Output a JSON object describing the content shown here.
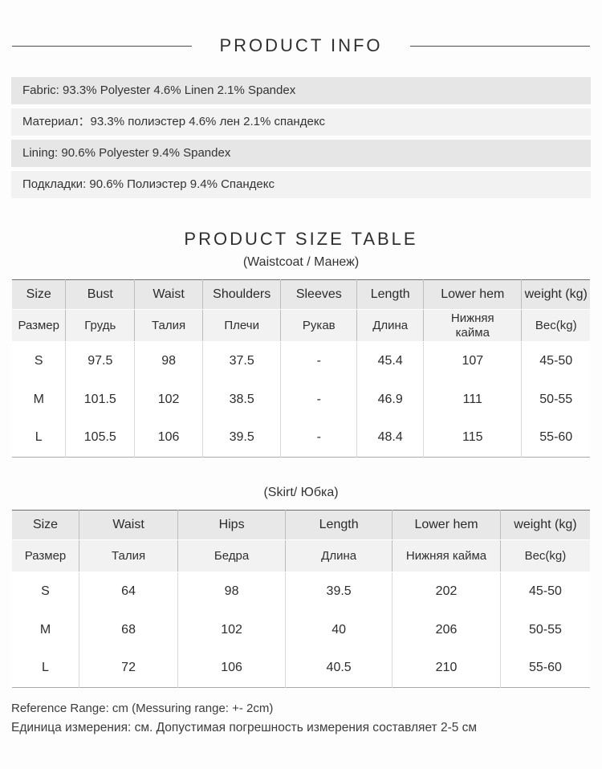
{
  "header": {
    "title": "PRODUCT INFO"
  },
  "fabric_info": [
    "Fabric: 93.3% Polyester 4.6% Linen 2.1% Spandex",
    "Материал：93.3% полиэстер 4.6% лен 2.1% спандекс",
    "Lining: 90.6% Polyester 9.4% Spandex",
    "Подкладки:  90.6% Полиэстер 9.4% Спандекс"
  ],
  "size_table": {
    "title": "PRODUCT SIZE TABLE",
    "waistcoat": {
      "subtitle": "(Waistcoat / Манеж)",
      "headers_en": [
        "Size",
        "Bust",
        "Waist",
        "Shoulders",
        "Sleeves",
        "Length",
        "Lower hem",
        "weight (kg)"
      ],
      "headers_ru": [
        "Размер",
        "Грудь",
        "Талия",
        "Плечи",
        "Рукав",
        "Длина",
        "Нижняя\nкайма",
        "Вес(kg)"
      ],
      "col_widths_pct": [
        9.3,
        11.9,
        11.8,
        13.5,
        13.2,
        11.5,
        17.0,
        11.8
      ],
      "rows": [
        [
          "S",
          "97.5",
          "98",
          "37.5",
          "-",
          "45.4",
          "107",
          "45-50"
        ],
        [
          "M",
          "101.5",
          "102",
          "38.5",
          "-",
          "46.9",
          "111",
          "50-55"
        ],
        [
          "L",
          "105.5",
          "106",
          "39.5",
          "-",
          "48.4",
          "115",
          "55-60"
        ]
      ]
    },
    "skirt": {
      "subtitle": "(Skirt/ Юбка)",
      "headers_en": [
        "Size",
        "Waist",
        "Hips",
        "Length",
        "Lower hem",
        "weight (kg)"
      ],
      "headers_ru": [
        "Размер",
        "Талия",
        "Бедра",
        "Длина",
        "Нижняя кайма",
        "Вес(kg)"
      ],
      "col_widths_pct": [
        11.6,
        17.1,
        18.6,
        18.5,
        18.7,
        15.5
      ],
      "rows": [
        [
          "S",
          "64",
          "98",
          "39.5",
          "202",
          "45-50"
        ],
        [
          "M",
          "68",
          "102",
          "40",
          "206",
          "50-55"
        ],
        [
          "L",
          "72",
          "106",
          "40.5",
          "210",
          "55-60"
        ]
      ]
    }
  },
  "footer": {
    "line_en": "Reference Range: cm (Messuring range: +- 2cm)",
    "line_ru": "Единица измерения: см. Допустимая погрешность измерения составляет 2-5 см"
  }
}
